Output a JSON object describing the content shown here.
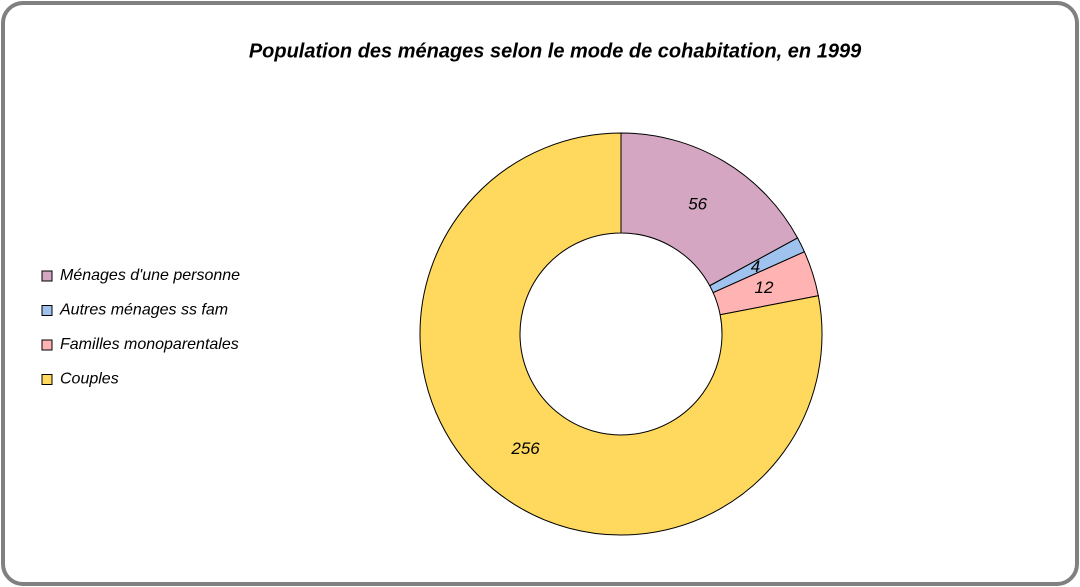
{
  "chart_data": {
    "type": "donut",
    "title": "Population des ménages selon le mode de cohabitation, en 1999",
    "categories": [
      "Ménages d'une personne",
      "Autres ménages ss fam",
      "Familles monoparentales",
      "Couples"
    ],
    "values": [
      56,
      4,
      12,
      256
    ],
    "colors": [
      "#d4a6c2",
      "#9fc3ee",
      "#ffb3b3",
      "#fed95e"
    ],
    "legend": "left"
  }
}
